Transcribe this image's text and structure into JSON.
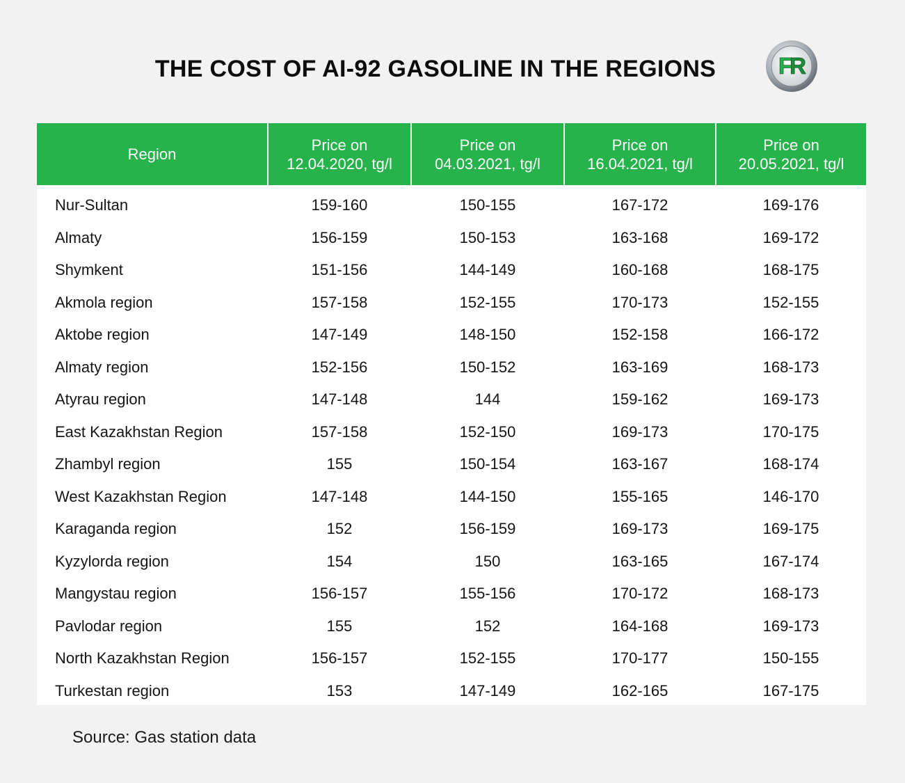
{
  "title": "THE COST OF AI-92 GASOLINE IN THE REGIONS",
  "logo": {
    "text": "FR",
    "icon": "fr-logo-icon",
    "colors": {
      "f": "#27b34b",
      "r": "#1f8a3c",
      "ring": "#8c9399"
    }
  },
  "source": "Source: Gas station data",
  "colors": {
    "header_bg": "#27b34b",
    "header_text": "#ffffff",
    "page_bg": "#f2f2f2",
    "table_bg": "#ffffff"
  },
  "chart_data": {
    "type": "table",
    "title": "THE COST OF AI-92 GASOLINE IN THE REGIONS",
    "columns": [
      {
        "line1": "Region",
        "line2": ""
      },
      {
        "line1": "Price on",
        "line2": "12.04.2020, tg/l"
      },
      {
        "line1": "Price on",
        "line2": "04.03.2021, tg/l"
      },
      {
        "line1": "Price on",
        "line2": "16.04.2021, tg/l"
      },
      {
        "line1": "Price on",
        "line2": "20.05.2021, tg/l"
      }
    ],
    "rows": [
      [
        "Nur-Sultan",
        "159-160",
        "150-155",
        "167-172",
        "169-176"
      ],
      [
        "Almaty",
        "156-159",
        "150-153",
        "163-168",
        "169-172"
      ],
      [
        "Shymkent",
        "151-156",
        "144-149",
        "160-168",
        "168-175"
      ],
      [
        "Akmola region",
        "157-158",
        "152-155",
        "170-173",
        "152-155"
      ],
      [
        "Aktobe region",
        "147-149",
        "148-150",
        "152-158",
        "166-172"
      ],
      [
        "Almaty region",
        "152-156",
        "150-152",
        "163-169",
        "168-173"
      ],
      [
        "Atyrau region",
        "147-148",
        "144",
        "159-162",
        "169-173"
      ],
      [
        "East Kazakhstan Region",
        "157-158",
        "152-150",
        "169-173",
        "170-175"
      ],
      [
        "Zhambyl region",
        "155",
        "150-154",
        "163-167",
        "168-174"
      ],
      [
        "West Kazakhstan Region",
        "147-148",
        "144-150",
        "155-165",
        "146-170"
      ],
      [
        "Karaganda region",
        "152",
        "156-159",
        "169-173",
        "169-175"
      ],
      [
        "Kyzylorda region",
        "154",
        "150",
        "163-165",
        "167-174"
      ],
      [
        "Mangystau region",
        "156-157",
        "155-156",
        "170-172",
        "168-173"
      ],
      [
        "Pavlodar region",
        "155",
        "152",
        "164-168",
        "169-173"
      ],
      [
        "North Kazakhstan Region",
        "156-157",
        "152-155",
        "170-177",
        "150-155"
      ],
      [
        "Turkestan region",
        "153",
        "147-149",
        "162-165",
        "167-175"
      ]
    ]
  }
}
